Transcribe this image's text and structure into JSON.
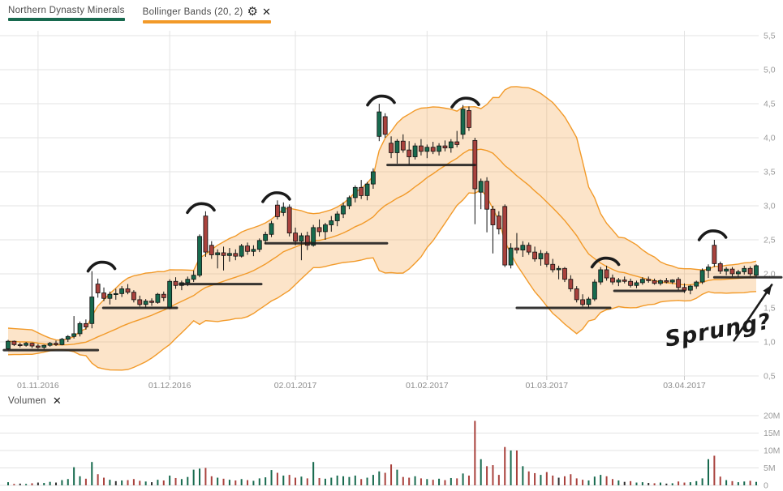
{
  "header": {
    "series": [
      {
        "label": "Northern Dynasty Minerals",
        "underline_color": "#17694e"
      },
      {
        "label": "Bollinger Bands (20, 2)",
        "underline_color": "#f29a29",
        "settings_glyph": "⚙",
        "close_glyph": "✕"
      }
    ]
  },
  "volume_pane": {
    "label": "Volumen",
    "close_glyph": "✕",
    "y_ticks": [
      {
        "label": "20M",
        "value": 20
      },
      {
        "label": "15M",
        "value": 15
      },
      {
        "label": "10M",
        "value": 10
      },
      {
        "label": "5M",
        "value": 5
      },
      {
        "label": "0",
        "value": 0
      }
    ]
  },
  "price_axis": {
    "y_ticks": [
      {
        "label": "5,5",
        "value": 5.5
      },
      {
        "label": "5,0",
        "value": 5.0
      },
      {
        "label": "4,5",
        "value": 4.5
      },
      {
        "label": "4,0",
        "value": 4.0
      },
      {
        "label": "3,5",
        "value": 3.5
      },
      {
        "label": "3,0",
        "value": 3.0
      },
      {
        "label": "2,5",
        "value": 2.5
      },
      {
        "label": "2,0",
        "value": 2.0
      },
      {
        "label": "1,5",
        "value": 1.5
      },
      {
        "label": "1,0",
        "value": 1.0
      },
      {
        "label": "0,5",
        "value": 0.5
      }
    ]
  },
  "x_axis": {
    "ticks": [
      {
        "label": "01.11.2016",
        "index": 5
      },
      {
        "label": "01.12.2016",
        "index": 27
      },
      {
        "label": "02.01.2017",
        "index": 48
      },
      {
        "label": "01.02.2017",
        "index": 70
      },
      {
        "label": "01.03.2017",
        "index": 90
      },
      {
        "label": "03.04.2017",
        "index": 113
      }
    ]
  },
  "colors": {
    "up": "#176a4e",
    "down": "#a9423d",
    "candle_stroke": "#101010",
    "doji_volume": "#2f2f2f",
    "band_line": "#f29a29",
    "band_fill": "rgba(245,166,77,0.30)",
    "grid": "#e3e3e3",
    "tick_stub": "#c9c9c9",
    "axis_text": "#9a9a9a",
    "date_text": "#8c8c8c",
    "annotation": "#1b1b1b"
  },
  "chart_data": {
    "type": "candlestick",
    "symbol": "Northern Dynasty Minerals",
    "overlay": {
      "name": "Bollinger Bands",
      "period": 20,
      "stddev": 2
    },
    "price_range": [
      0.5,
      5.5
    ],
    "volume_range_millions": [
      0,
      20
    ],
    "columns": [
      "date",
      "open",
      "high",
      "low",
      "close",
      "volume_millions"
    ],
    "candles": [
      [
        "25.10.2016",
        0.9,
        1.03,
        0.88,
        1.01,
        0.9
      ],
      [
        "26.10.2016",
        1.01,
        1.02,
        0.94,
        0.96,
        0.4
      ],
      [
        "27.10.2016",
        0.96,
        0.99,
        0.92,
        0.95,
        0.5
      ],
      [
        "28.10.2016",
        0.95,
        1.0,
        0.93,
        0.98,
        0.4
      ],
      [
        "31.10.2016",
        0.98,
        0.99,
        0.91,
        0.94,
        0.6
      ],
      [
        "01.11.2016",
        0.94,
        0.97,
        0.9,
        0.92,
        0.8
      ],
      [
        "02.11.2016",
        0.92,
        0.96,
        0.89,
        0.95,
        0.7
      ],
      [
        "03.11.2016",
        0.95,
        1.0,
        0.93,
        0.98,
        1.0
      ],
      [
        "04.11.2016",
        0.98,
        1.02,
        0.94,
        0.96,
        0.8
      ],
      [
        "07.11.2016",
        0.96,
        1.06,
        0.95,
        1.04,
        1.5
      ],
      [
        "08.11.2016",
        1.04,
        1.1,
        1.0,
        1.08,
        1.8
      ],
      [
        "09.11.2016",
        1.08,
        1.38,
        1.05,
        1.12,
        5.2
      ],
      [
        "10.11.2016",
        1.12,
        1.3,
        1.08,
        1.27,
        2.6
      ],
      [
        "11.11.2016",
        1.27,
        1.33,
        1.18,
        1.22,
        1.9
      ],
      [
        "14.11.2016",
        1.27,
        2.04,
        1.2,
        1.66,
        6.7
      ],
      [
        "15.11.2016",
        1.85,
        1.93,
        1.65,
        1.72,
        3.2
      ],
      [
        "16.11.2016",
        1.72,
        1.8,
        1.6,
        1.64,
        2.2
      ],
      [
        "17.11.2016",
        1.64,
        1.74,
        1.55,
        1.7,
        1.6
      ],
      [
        "18.11.2016",
        1.7,
        1.78,
        1.62,
        1.71,
        1.2
      ],
      [
        "21.11.2016",
        1.71,
        1.82,
        1.66,
        1.78,
        1.4
      ],
      [
        "22.11.2016",
        1.78,
        1.85,
        1.7,
        1.73,
        1.5
      ],
      [
        "23.11.2016",
        1.73,
        1.76,
        1.58,
        1.62,
        1.8
      ],
      [
        "24.11.2016",
        1.62,
        1.68,
        1.52,
        1.55,
        1.3
      ],
      [
        "25.11.2016",
        1.55,
        1.63,
        1.5,
        1.6,
        1.1
      ],
      [
        "28.11.2016",
        1.6,
        1.64,
        1.53,
        1.58,
        0.9
      ],
      [
        "29.11.2016",
        1.58,
        1.72,
        1.56,
        1.7,
        1.6
      ],
      [
        "30.11.2016",
        1.7,
        1.74,
        1.6,
        1.65,
        1.4
      ],
      [
        "01.12.2016",
        1.5,
        1.92,
        1.48,
        1.89,
        2.8
      ],
      [
        "02.12.2016",
        1.89,
        1.95,
        1.78,
        1.83,
        2.1
      ],
      [
        "05.12.2016",
        1.83,
        1.9,
        1.76,
        1.87,
        1.8
      ],
      [
        "06.12.2016",
        1.87,
        1.96,
        1.82,
        1.92,
        2.4
      ],
      [
        "07.12.2016",
        1.92,
        2.05,
        1.88,
        1.98,
        4.5
      ],
      [
        "08.12.2016",
        1.98,
        2.58,
        1.95,
        2.55,
        4.8
      ],
      [
        "09.12.2016",
        2.85,
        2.92,
        2.25,
        2.32,
        5.0
      ],
      [
        "12.12.2016",
        2.42,
        2.48,
        2.22,
        2.28,
        2.6
      ],
      [
        "13.12.2016",
        2.28,
        2.36,
        2.08,
        2.31,
        2.2
      ],
      [
        "14.12.2016",
        2.31,
        2.4,
        2.05,
        2.27,
        1.9
      ],
      [
        "15.12.2016",
        2.27,
        2.38,
        2.18,
        2.3,
        1.6
      ],
      [
        "16.12.2016",
        2.3,
        2.36,
        2.2,
        2.26,
        1.4
      ],
      [
        "19.12.2016",
        2.26,
        2.44,
        2.24,
        2.41,
        1.8
      ],
      [
        "20.12.2016",
        2.41,
        2.46,
        2.28,
        2.33,
        1.5
      ],
      [
        "21.12.2016",
        2.33,
        2.42,
        2.26,
        2.36,
        1.3
      ],
      [
        "22.12.2016",
        2.36,
        2.52,
        2.32,
        2.49,
        2.0
      ],
      [
        "23.12.2016",
        2.49,
        2.62,
        2.44,
        2.58,
        2.3
      ],
      [
        "27.12.2016",
        2.58,
        2.78,
        2.54,
        2.74,
        4.4
      ],
      [
        "28.12.2016",
        3.01,
        3.08,
        2.8,
        2.84,
        3.6
      ],
      [
        "29.12.2016",
        2.9,
        3.05,
        2.85,
        2.98,
        2.8
      ],
      [
        "30.12.2016",
        2.98,
        3.02,
        2.55,
        2.6,
        3.0
      ],
      [
        "02.01.2017",
        2.6,
        2.68,
        2.42,
        2.48,
        2.2
      ],
      [
        "03.01.2017",
        2.48,
        2.6,
        2.2,
        2.56,
        2.5
      ],
      [
        "04.01.2017",
        2.56,
        2.62,
        2.35,
        2.42,
        2.0
      ],
      [
        "05.01.2017",
        2.42,
        2.72,
        2.4,
        2.68,
        6.7
      ],
      [
        "06.01.2017",
        2.68,
        2.8,
        2.55,
        2.62,
        2.1
      ],
      [
        "09.01.2017",
        2.62,
        2.75,
        2.5,
        2.72,
        1.9
      ],
      [
        "10.01.2017",
        2.72,
        2.85,
        2.62,
        2.78,
        2.2
      ],
      [
        "11.01.2017",
        2.78,
        2.92,
        2.7,
        2.88,
        2.8
      ],
      [
        "12.01.2017",
        2.88,
        3.05,
        2.82,
        3.0,
        2.6
      ],
      [
        "13.01.2017",
        3.0,
        3.15,
        2.95,
        3.12,
        2.4
      ],
      [
        "16.01.2017",
        3.12,
        3.3,
        3.05,
        3.27,
        2.8
      ],
      [
        "17.01.2017",
        3.27,
        3.38,
        3.1,
        3.15,
        1.8
      ],
      [
        "18.01.2017",
        3.15,
        3.35,
        3.08,
        3.32,
        2.2
      ],
      [
        "19.01.2017",
        3.32,
        3.55,
        3.25,
        3.5,
        3.0
      ],
      [
        "20.01.2017",
        4.02,
        4.5,
        3.95,
        4.38,
        4.0
      ],
      [
        "23.01.2017",
        4.31,
        4.36,
        4.0,
        4.05,
        3.6
      ],
      [
        "24.01.2017",
        3.92,
        4.02,
        3.7,
        3.78,
        6.0
      ],
      [
        "25.01.2017",
        3.78,
        3.98,
        3.62,
        3.95,
        4.5
      ],
      [
        "26.01.2017",
        3.95,
        4.05,
        3.78,
        3.82,
        2.4
      ],
      [
        "27.01.2017",
        3.82,
        3.95,
        3.6,
        3.72,
        2.2
      ],
      [
        "30.01.2017",
        3.72,
        3.92,
        3.68,
        3.88,
        2.6
      ],
      [
        "31.01.2017",
        3.88,
        3.98,
        3.74,
        3.8,
        2.0
      ],
      [
        "01.02.2017",
        3.8,
        3.9,
        3.7,
        3.86,
        1.8
      ],
      [
        "02.02.2017",
        3.86,
        3.94,
        3.76,
        3.8,
        1.6
      ],
      [
        "03.02.2017",
        3.8,
        3.92,
        3.74,
        3.88,
        1.9
      ],
      [
        "06.02.2017",
        3.88,
        3.96,
        3.8,
        3.85,
        1.5
      ],
      [
        "07.02.2017",
        3.85,
        3.98,
        3.78,
        3.94,
        2.1
      ],
      [
        "08.02.2017",
        3.94,
        4.1,
        3.86,
        3.9,
        2.0
      ],
      [
        "09.02.2017",
        4.05,
        4.48,
        3.98,
        4.42,
        3.4
      ],
      [
        "10.02.2017",
        4.4,
        4.46,
        4.1,
        4.15,
        2.8
      ],
      [
        "13.02.2017",
        3.96,
        4.0,
        2.73,
        3.25,
        18.5
      ],
      [
        "14.02.2017",
        3.2,
        3.4,
        2.95,
        3.36,
        7.5
      ],
      [
        "15.02.2017",
        3.36,
        3.42,
        2.61,
        2.95,
        5.5
      ],
      [
        "16.02.2017",
        2.95,
        3.0,
        2.3,
        2.72,
        5.8
      ],
      [
        "17.02.2017",
        2.85,
        2.92,
        2.58,
        2.66,
        3.0
      ],
      [
        "20.02.2017",
        2.99,
        3.02,
        2.1,
        2.13,
        11.0
      ],
      [
        "21.02.2017",
        2.13,
        2.45,
        2.08,
        2.38,
        10.0
      ],
      [
        "22.02.2017",
        2.38,
        2.6,
        2.3,
        2.35,
        10.0
      ],
      [
        "23.02.2017",
        2.35,
        2.48,
        2.25,
        2.42,
        5.5
      ],
      [
        "24.02.2017",
        2.42,
        2.46,
        2.28,
        2.32,
        4.0
      ],
      [
        "27.02.2017",
        2.32,
        2.4,
        2.18,
        2.22,
        3.5
      ],
      [
        "28.02.2017",
        2.22,
        2.35,
        2.12,
        2.3,
        3.0
      ],
      [
        "01.03.2017",
        2.3,
        2.33,
        2.1,
        2.14,
        3.8
      ],
      [
        "02.03.2017",
        2.14,
        2.22,
        2.02,
        2.06,
        2.8
      ],
      [
        "03.03.2017",
        2.06,
        2.12,
        1.92,
        2.08,
        2.2
      ],
      [
        "06.03.2017",
        2.08,
        2.1,
        1.88,
        1.92,
        2.6
      ],
      [
        "07.03.2017",
        1.92,
        1.98,
        1.74,
        1.78,
        3.2
      ],
      [
        "08.03.2017",
        1.78,
        1.82,
        1.58,
        1.62,
        2.0
      ],
      [
        "09.03.2017",
        1.62,
        1.7,
        1.52,
        1.55,
        1.6
      ],
      [
        "10.03.2017",
        1.55,
        1.66,
        1.5,
        1.63,
        1.4
      ],
      [
        "13.03.2017",
        1.63,
        1.92,
        1.6,
        1.88,
        2.5
      ],
      [
        "14.03.2017",
        1.88,
        2.1,
        1.84,
        2.06,
        3.0
      ],
      [
        "15.03.2017",
        2.06,
        2.12,
        1.9,
        1.94,
        2.6
      ],
      [
        "16.03.2017",
        1.94,
        1.99,
        1.84,
        1.88,
        1.8
      ],
      [
        "17.03.2017",
        1.88,
        1.94,
        1.82,
        1.91,
        1.4
      ],
      [
        "20.03.2017",
        1.91,
        1.96,
        1.86,
        1.89,
        1.0
      ],
      [
        "21.03.2017",
        1.89,
        1.93,
        1.8,
        1.83,
        1.2
      ],
      [
        "22.03.2017",
        1.83,
        1.9,
        1.79,
        1.87,
        0.8
      ],
      [
        "23.03.2017",
        1.87,
        1.95,
        1.84,
        1.92,
        0.9
      ],
      [
        "24.03.2017",
        1.92,
        1.96,
        1.87,
        1.9,
        0.7
      ],
      [
        "27.03.2017",
        1.9,
        1.93,
        1.84,
        1.86,
        0.6
      ],
      [
        "28.03.2017",
        1.86,
        1.92,
        1.83,
        1.9,
        0.8
      ],
      [
        "29.03.2017",
        1.9,
        1.94,
        1.86,
        1.88,
        0.5
      ],
      [
        "30.03.2017",
        1.88,
        1.92,
        1.85,
        1.91,
        0.6
      ],
      [
        "31.03.2017",
        1.92,
        1.95,
        1.76,
        1.8,
        1.1
      ],
      [
        "03.04.2017",
        1.8,
        1.86,
        1.72,
        1.76,
        0.8
      ],
      [
        "04.04.2017",
        1.76,
        1.84,
        1.7,
        1.82,
        0.9
      ],
      [
        "05.04.2017",
        1.82,
        1.9,
        1.78,
        1.88,
        1.2
      ],
      [
        "06.04.2017",
        1.88,
        2.08,
        1.85,
        2.05,
        2.0
      ],
      [
        "07.04.2017",
        2.05,
        2.14,
        1.94,
        2.1,
        7.5
      ],
      [
        "10.04.2017",
        2.42,
        2.5,
        2.1,
        2.15,
        8.5
      ],
      [
        "11.04.2017",
        2.15,
        2.18,
        2.0,
        2.04,
        2.5
      ],
      [
        "12.04.2017",
        2.04,
        2.1,
        1.98,
        2.07,
        1.5
      ],
      [
        "13.04.2017",
        2.07,
        2.1,
        1.96,
        2.0,
        1.2
      ],
      [
        "18.04.2017",
        2.0,
        2.06,
        1.95,
        2.03,
        0.9
      ],
      [
        "19.04.2017",
        2.03,
        2.12,
        1.99,
        2.08,
        1.1
      ],
      [
        "20.04.2017",
        2.08,
        2.11,
        1.97,
        2.0,
        1.3
      ],
      [
        "21.04.2017",
        1.98,
        2.14,
        1.95,
        2.12,
        1.0
      ]
    ],
    "pre_window_closes": [
      1.22,
      1.18,
      1.14,
      1.09,
      1.05,
      1.01,
      0.98,
      0.95,
      0.93,
      0.91,
      0.9,
      0.92,
      0.94,
      0.93,
      0.96
    ],
    "annotations": {
      "support_lines": [
        {
          "from_index": -0.7,
          "to_index": 15.0,
          "price": 0.88
        },
        {
          "from_index": 15.9,
          "to_index": 28.2,
          "price": 1.5
        },
        {
          "from_index": 28.7,
          "to_index": 42.3,
          "price": 1.85
        },
        {
          "from_index": 43.0,
          "to_index": 63.3,
          "price": 2.45
        },
        {
          "from_index": 63.4,
          "to_index": 78.0,
          "price": 3.6
        },
        {
          "from_index": 85.0,
          "to_index": 100.6,
          "price": 1.5
        },
        {
          "from_index": 101.3,
          "to_index": 113.0,
          "price": 1.75
        },
        {
          "from_index": 118.0,
          "to_index": 129.2,
          "price": 1.95
        }
      ],
      "arcs": [
        {
          "index": 15.8,
          "price": 2.16
        },
        {
          "index": 32.4,
          "price": 3.02
        },
        {
          "index": 45.0,
          "price": 3.18
        },
        {
          "index": 62.5,
          "price": 4.6
        },
        {
          "index": 76.6,
          "price": 4.57
        },
        {
          "index": 100.0,
          "price": 2.22
        },
        {
          "index": 117.9,
          "price": 2.62
        }
      ],
      "note": {
        "text": "Sprung?",
        "index": 110.0,
        "price": 0.93,
        "rotation": -10
      },
      "arrow": {
        "from": {
          "index": 121.3,
          "price": 1.02
        },
        "to": {
          "index": 127.6,
          "price": 1.84
        }
      }
    }
  }
}
